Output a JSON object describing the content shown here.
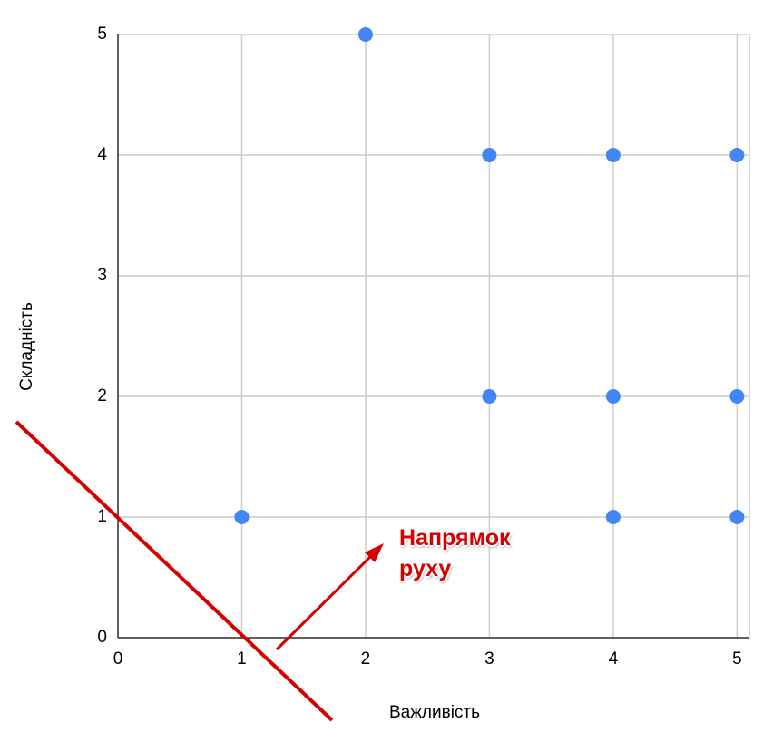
{
  "chart_data": {
    "type": "scatter",
    "x_label": "Важливість",
    "y_label": "Складність",
    "annotation": "Напрямок руху",
    "series": [
      {
        "name": null,
        "color": "#4285f4",
        "x": [
          2,
          3,
          4,
          5,
          3,
          4,
          5,
          1,
          4,
          5
        ],
        "values": [
          5,
          4,
          4,
          4,
          2,
          2,
          2,
          1,
          1,
          1
        ]
      }
    ],
    "xlim": [
      0,
      5.1
    ],
    "xticks": [
      0,
      1,
      2,
      3,
      4,
      5
    ],
    "ylim": [
      0,
      5
    ],
    "yticks": [
      0,
      1,
      2,
      3,
      4,
      5
    ],
    "grid": true,
    "annotation_color": "#d50000"
  }
}
